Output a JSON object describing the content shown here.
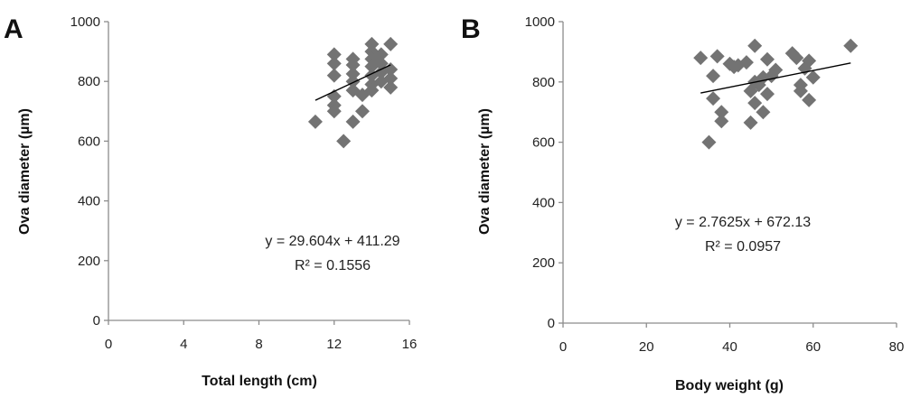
{
  "chart_data": [
    {
      "type": "scatter",
      "panel_label": "A",
      "xlabel": "Total length (cm)",
      "ylabel": "Ova diameter (µm)",
      "xlim": [
        0,
        16
      ],
      "ylim": [
        0,
        1000
      ],
      "xticks": [
        0,
        4,
        8,
        12,
        16
      ],
      "yticks": [
        0,
        200,
        400,
        600,
        800,
        1000
      ],
      "grid": false,
      "marker": "diamond",
      "point_color": "#737373",
      "trendline": {
        "slope": 29.604,
        "intercept": 411.29,
        "x_range": [
          11,
          15
        ]
      },
      "equation": "y = 29.604x + 411.29",
      "r2_label": "R² = 0.1556",
      "points": [
        [
          11,
          665
        ],
        [
          12,
          890
        ],
        [
          12,
          860
        ],
        [
          12,
          820
        ],
        [
          12,
          750
        ],
        [
          12,
          720
        ],
        [
          12,
          700
        ],
        [
          12.5,
          600
        ],
        [
          13,
          875
        ],
        [
          13,
          855
        ],
        [
          13,
          825
        ],
        [
          13,
          800
        ],
        [
          13,
          770
        ],
        [
          13,
          665
        ],
        [
          13.5,
          755
        ],
        [
          13.5,
          700
        ],
        [
          14,
          925
        ],
        [
          14,
          900
        ],
        [
          14,
          875
        ],
        [
          14,
          850
        ],
        [
          14,
          820
        ],
        [
          14,
          790
        ],
        [
          14,
          770
        ],
        [
          14.5,
          890
        ],
        [
          14.5,
          860
        ],
        [
          14.5,
          830
        ],
        [
          14.5,
          800
        ],
        [
          15,
          925
        ],
        [
          15,
          840
        ],
        [
          15,
          810
        ],
        [
          15,
          780
        ]
      ]
    },
    {
      "type": "scatter",
      "panel_label": "B",
      "xlabel": "Body weight (g)",
      "ylabel": "Ova diameter (µm)",
      "xlim": [
        0,
        80
      ],
      "ylim": [
        0,
        1000
      ],
      "xticks": [
        0,
        20,
        40,
        60,
        80
      ],
      "yticks": [
        0,
        200,
        400,
        600,
        800,
        1000
      ],
      "grid": false,
      "marker": "diamond",
      "point_color": "#737373",
      "trendline": {
        "slope": 2.7625,
        "intercept": 672.13,
        "x_range": [
          33,
          69
        ]
      },
      "equation": "y = 2.7625x + 672.13",
      "r2_label": "R² = 0.0957",
      "points": [
        [
          33,
          880
        ],
        [
          35,
          600
        ],
        [
          36,
          820
        ],
        [
          36,
          745
        ],
        [
          37,
          885
        ],
        [
          38,
          700
        ],
        [
          38,
          670
        ],
        [
          40,
          860
        ],
        [
          41,
          850
        ],
        [
          42,
          855
        ],
        [
          44,
          865
        ],
        [
          45,
          770
        ],
        [
          45,
          665
        ],
        [
          46,
          920
        ],
        [
          46,
          800
        ],
        [
          46,
          730
        ],
        [
          47,
          790
        ],
        [
          48,
          815
        ],
        [
          48,
          700
        ],
        [
          49,
          875
        ],
        [
          49,
          760
        ],
        [
          50,
          820
        ],
        [
          51,
          840
        ],
        [
          55,
          895
        ],
        [
          56,
          880
        ],
        [
          57,
          790
        ],
        [
          57,
          770
        ],
        [
          58,
          845
        ],
        [
          59,
          740
        ],
        [
          59,
          870
        ],
        [
          60,
          815
        ],
        [
          69,
          920
        ]
      ]
    }
  ]
}
